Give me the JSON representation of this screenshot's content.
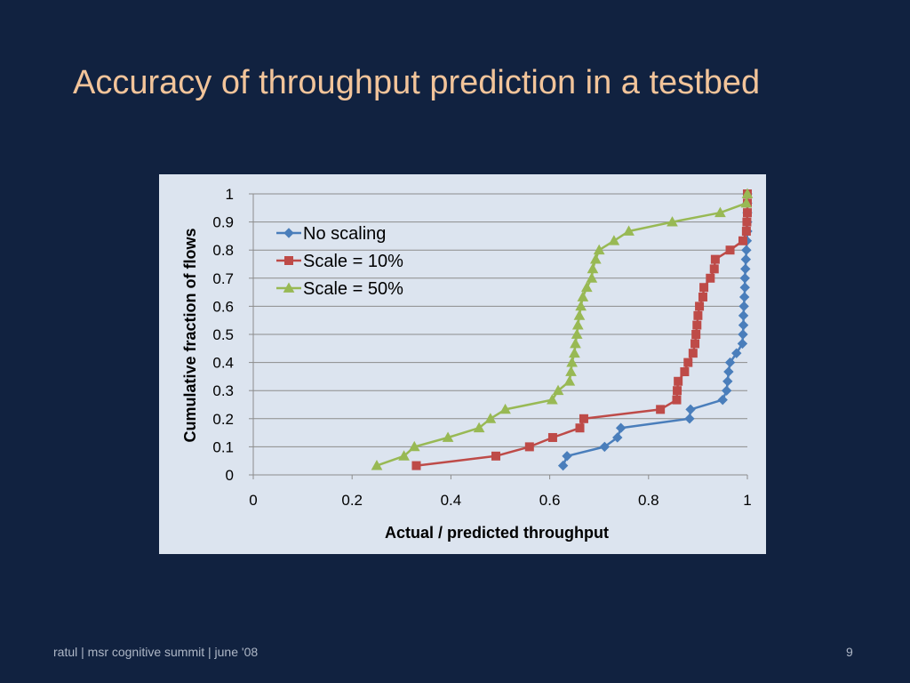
{
  "slide": {
    "title": "Accuracy of throughput prediction in a testbed",
    "footer": "ratul | msr cognitive summit | june '08",
    "page_number": "9"
  },
  "colors": {
    "background": "#112240",
    "title": "#F2C49A",
    "chart_bg": "#DCE4EF"
  },
  "chart_data": {
    "type": "line",
    "title": "",
    "xlabel": "Actual / predicted throughput",
    "ylabel": "Cumulative fraction of flows",
    "xlim": [
      0,
      1
    ],
    "ylim": [
      0,
      1
    ],
    "xticks": [
      0,
      0.2,
      0.4,
      0.6,
      0.8,
      1
    ],
    "xtick_labels": [
      "0",
      "0.2",
      "0.4",
      "0.6",
      "0.8",
      "1"
    ],
    "yticks": [
      0,
      0.1,
      0.2,
      0.3,
      0.4,
      0.5,
      0.6,
      0.7,
      0.8,
      0.9,
      1
    ],
    "ytick_labels": [
      "0",
      "0.1",
      "0.2",
      "0.3",
      "0.4",
      "0.5",
      "0.6",
      "0.7",
      "0.8",
      "0.9",
      "1"
    ],
    "grid": "horizontal",
    "legend_position": "top-left",
    "series": [
      {
        "name": "No scaling",
        "color": "#4A7EBB",
        "marker": "diamond",
        "points": [
          [
            0.627,
            0.033
          ],
          [
            0.635,
            0.067
          ],
          [
            0.711,
            0.1
          ],
          [
            0.737,
            0.133
          ],
          [
            0.744,
            0.167
          ],
          [
            0.883,
            0.2
          ],
          [
            0.885,
            0.233
          ],
          [
            0.95,
            0.267
          ],
          [
            0.958,
            0.3
          ],
          [
            0.96,
            0.333
          ],
          [
            0.962,
            0.367
          ],
          [
            0.965,
            0.4
          ],
          [
            0.978,
            0.433
          ],
          [
            0.99,
            0.467
          ],
          [
            0.991,
            0.5
          ],
          [
            0.992,
            0.533
          ],
          [
            0.992,
            0.567
          ],
          [
            0.993,
            0.6
          ],
          [
            0.994,
            0.633
          ],
          [
            0.995,
            0.667
          ],
          [
            0.995,
            0.7
          ],
          [
            0.996,
            0.733
          ],
          [
            0.997,
            0.767
          ],
          [
            0.998,
            0.8
          ],
          [
            0.999,
            0.833
          ],
          [
            1.0,
            0.867
          ],
          [
            1.0,
            0.9
          ],
          [
            1.0,
            0.933
          ],
          [
            1.0,
            0.967
          ],
          [
            1.0,
            1.0
          ]
        ]
      },
      {
        "name": "Scale = 10%",
        "color": "#BE4B48",
        "marker": "square",
        "points": [
          [
            0.33,
            0.033
          ],
          [
            0.491,
            0.067
          ],
          [
            0.559,
            0.1
          ],
          [
            0.606,
            0.133
          ],
          [
            0.661,
            0.167
          ],
          [
            0.669,
            0.2
          ],
          [
            0.824,
            0.233
          ],
          [
            0.857,
            0.267
          ],
          [
            0.858,
            0.3
          ],
          [
            0.86,
            0.333
          ],
          [
            0.873,
            0.367
          ],
          [
            0.88,
            0.4
          ],
          [
            0.89,
            0.433
          ],
          [
            0.894,
            0.467
          ],
          [
            0.896,
            0.5
          ],
          [
            0.898,
            0.533
          ],
          [
            0.9,
            0.567
          ],
          [
            0.903,
            0.6
          ],
          [
            0.91,
            0.633
          ],
          [
            0.912,
            0.667
          ],
          [
            0.925,
            0.7
          ],
          [
            0.933,
            0.733
          ],
          [
            0.935,
            0.767
          ],
          [
            0.965,
            0.8
          ],
          [
            0.991,
            0.833
          ],
          [
            0.998,
            0.867
          ],
          [
            0.999,
            0.9
          ],
          [
            1.0,
            0.933
          ],
          [
            1.0,
            0.967
          ],
          [
            1.0,
            1.0
          ]
        ]
      },
      {
        "name": "Scale = 50%",
        "color": "#98B954",
        "marker": "triangle",
        "points": [
          [
            0.25,
            0.033
          ],
          [
            0.305,
            0.067
          ],
          [
            0.326,
            0.1
          ],
          [
            0.394,
            0.133
          ],
          [
            0.457,
            0.167
          ],
          [
            0.48,
            0.2
          ],
          [
            0.51,
            0.233
          ],
          [
            0.605,
            0.267
          ],
          [
            0.617,
            0.3
          ],
          [
            0.64,
            0.333
          ],
          [
            0.643,
            0.367
          ],
          [
            0.645,
            0.4
          ],
          [
            0.65,
            0.433
          ],
          [
            0.652,
            0.467
          ],
          [
            0.655,
            0.5
          ],
          [
            0.657,
            0.533
          ],
          [
            0.66,
            0.567
          ],
          [
            0.663,
            0.6
          ],
          [
            0.667,
            0.633
          ],
          [
            0.675,
            0.667
          ],
          [
            0.685,
            0.7
          ],
          [
            0.687,
            0.733
          ],
          [
            0.693,
            0.767
          ],
          [
            0.7,
            0.8
          ],
          [
            0.73,
            0.833
          ],
          [
            0.76,
            0.867
          ],
          [
            0.848,
            0.9
          ],
          [
            0.945,
            0.933
          ],
          [
            0.998,
            0.967
          ],
          [
            1.0,
            1.0
          ]
        ]
      }
    ]
  }
}
